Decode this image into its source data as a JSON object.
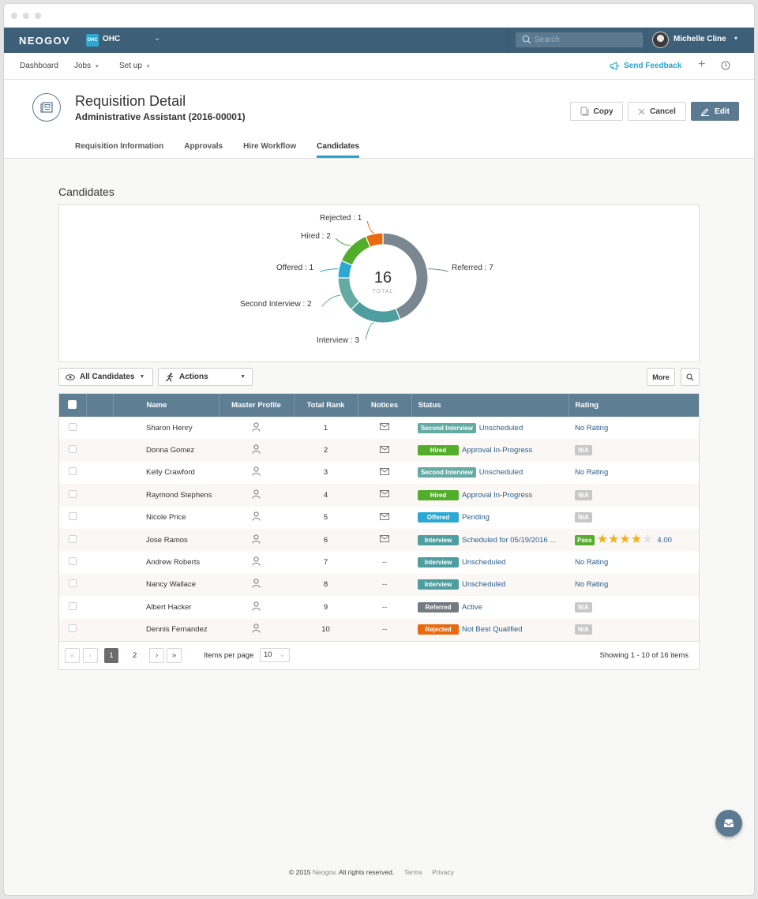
{
  "app": {
    "brand": "NEOGOV",
    "org_badge": "OHC",
    "org_name": "OHC",
    "search_placeholder": "Search",
    "user_name": "Michelle Cline"
  },
  "subnav": {
    "items": [
      {
        "label": "Dashboard",
        "has_caret": false
      },
      {
        "label": "Jobs",
        "has_caret": true
      },
      {
        "label": "Set up",
        "has_caret": true
      }
    ],
    "send_feedback": "Send Feedback"
  },
  "header": {
    "title": "Requisition Detail",
    "subtitle": "Administrative Assistant (2016-00001)",
    "buttons": {
      "copy": "Copy",
      "cancel": "Cancel",
      "edit": "Edit"
    },
    "tabs": [
      {
        "label": "Requisition Information",
        "active": false
      },
      {
        "label": "Approvals",
        "active": false
      },
      {
        "label": "Hire Workflow",
        "active": false
      },
      {
        "label": "Candidates",
        "active": true
      }
    ]
  },
  "candidates": {
    "section_title": "Candidates",
    "filter_label": "All Candidates",
    "actions_label": "Actions",
    "more_label": "More"
  },
  "chart_data": {
    "type": "pie",
    "variant": "donut",
    "title": "",
    "center_value": "16",
    "center_label": "TOTAL",
    "total": 16,
    "categories": [
      "Referred",
      "Interview",
      "Second Interview",
      "Offered",
      "Hired",
      "Rejected"
    ],
    "values": [
      7,
      3,
      2,
      1,
      2,
      1
    ],
    "colors": [
      "#7a8790",
      "#4e9ea0",
      "#64aba4",
      "#2ba9d3",
      "#52ad2a",
      "#e8690e"
    ],
    "labels": [
      "Referred : 7",
      "Interview : 3",
      "Second Interview : 2",
      "Offered : 1",
      "Hired : 2",
      "Rejected : 1"
    ],
    "legend": "callout labels"
  },
  "table": {
    "columns": [
      "",
      "",
      "Name",
      "Master Profile",
      "Total Rank",
      "Notices",
      "Status",
      "Rating"
    ],
    "rows": [
      {
        "name": "Sharon Henry",
        "rank": "1",
        "notice": "mail",
        "status": "Second Interview",
        "status_color": "#64aba4",
        "detail": "Unscheduled",
        "rating_type": "link",
        "rating": "No Rating"
      },
      {
        "name": "Donna Gomez",
        "rank": "2",
        "notice": "mail",
        "status": "Hired",
        "status_color": "#52ad2a",
        "detail": "Approval In-Progress",
        "rating_type": "na",
        "rating": "N/A"
      },
      {
        "name": "Kelly Crawford",
        "rank": "3",
        "notice": "mail",
        "status": "Second Interview",
        "status_color": "#64aba4",
        "detail": "Unscheduled",
        "rating_type": "link",
        "rating": "No Rating"
      },
      {
        "name": "Raymond Stephens",
        "rank": "4",
        "notice": "mail",
        "status": "Hired",
        "status_color": "#52ad2a",
        "detail": "Approval In-Progress",
        "rating_type": "na",
        "rating": "N/A"
      },
      {
        "name": "Nicole Price",
        "rank": "5",
        "notice": "mail",
        "status": "Offered",
        "status_color": "#2ba9d3",
        "detail": "Pending",
        "rating_type": "na",
        "rating": "N/A"
      },
      {
        "name": "Jose Ramos",
        "rank": "6",
        "notice": "mail",
        "status": "Interview",
        "status_color": "#4e9ea0",
        "detail": "Scheduled for 05/19/2016 ...",
        "rating_type": "stars",
        "rating": "4.00",
        "pass_label": "Pass",
        "stars": 4
      },
      {
        "name": "Andrew Roberts",
        "rank": "7",
        "notice": "--",
        "status": "Interview",
        "status_color": "#4e9ea0",
        "detail": "Unscheduled",
        "rating_type": "link",
        "rating": "No Rating"
      },
      {
        "name": "Nancy Wallace",
        "rank": "8",
        "notice": "--",
        "status": "Interview",
        "status_color": "#4e9ea0",
        "detail": "Unscheduled",
        "rating_type": "link",
        "rating": "No Rating"
      },
      {
        "name": "Albert Hacker",
        "rank": "9",
        "notice": "--",
        "status": "Referred",
        "status_color": "#737b82",
        "detail": "Active",
        "rating_type": "na",
        "rating": "N/A"
      },
      {
        "name": "Dennis Fernandez",
        "rank": "10",
        "notice": "--",
        "status": "Rejected",
        "status_color": "#e8690e",
        "detail": "Not Best Qualified",
        "rating_type": "na",
        "rating": "N/A"
      }
    ]
  },
  "pagination": {
    "current_page": "1",
    "next_page": "2",
    "items_per_page_label": "Items per page",
    "items_per_page": "10",
    "showing": "Showing 1 - 10 of 16 items"
  },
  "footer": {
    "copyright_prefix": "© 2015",
    "company": "Neogov",
    "rights": ". All rights reserved.",
    "terms": "Terms",
    "privacy": "Privacy"
  }
}
